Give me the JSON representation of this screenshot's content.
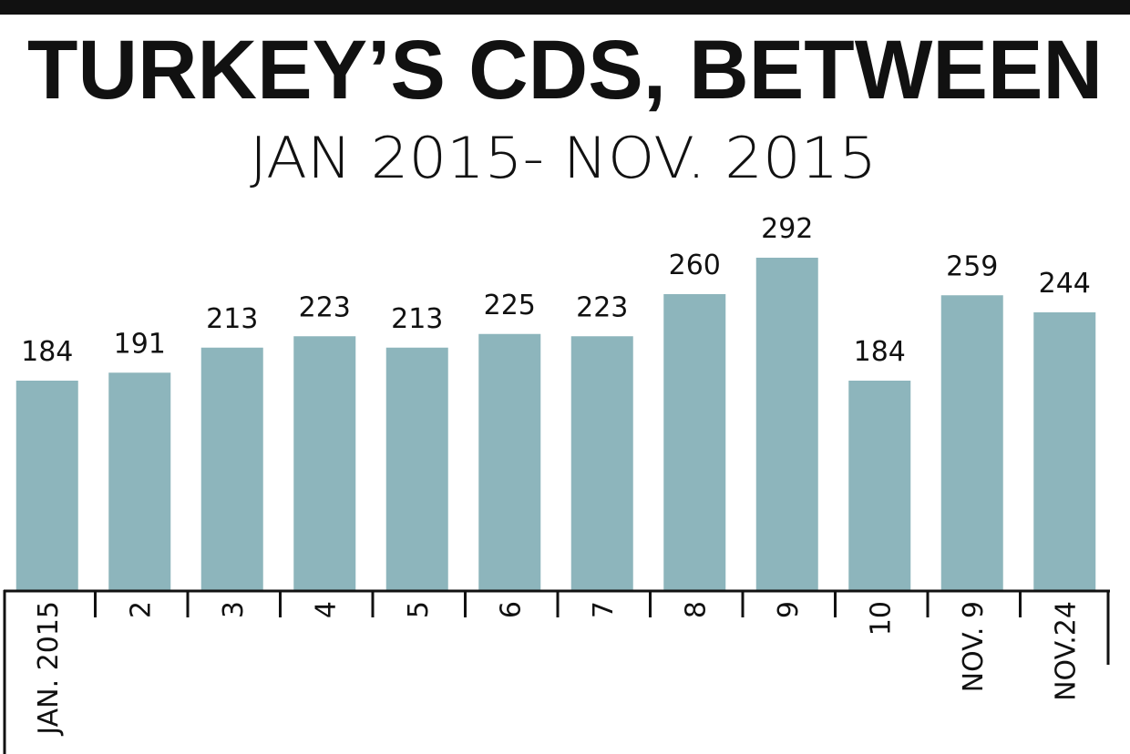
{
  "chart_data": {
    "type": "bar",
    "title": "TURKEY’S CDS, BETWEEN",
    "subtitle": "JAN 2015- NOV. 2015",
    "categories": [
      "JAN. 2015",
      "2",
      "3",
      "4",
      "5",
      "6",
      "7",
      "8",
      "9",
      "10",
      "NOV. 9",
      "NOV.24"
    ],
    "values": [
      184,
      191,
      213,
      223,
      213,
      225,
      223,
      260,
      292,
      184,
      259,
      244
    ],
    "color": "#8db5bc"
  }
}
